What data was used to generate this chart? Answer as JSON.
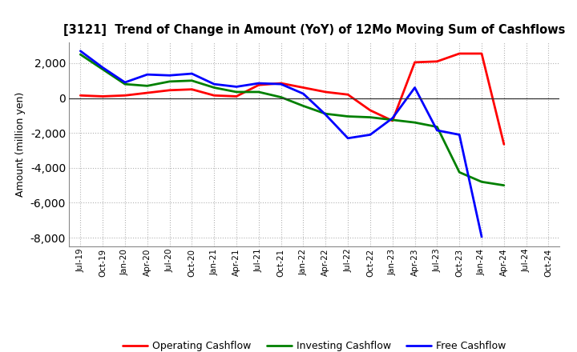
{
  "title": "[3121]  Trend of Change in Amount (YoY) of 12Mo Moving Sum of Cashflows",
  "ylabel": "Amount (million yen)",
  "ylim": [
    -8500,
    3200
  ],
  "yticks": [
    -8000,
    -6000,
    -4000,
    -2000,
    0,
    2000
  ],
  "background_color": "#ffffff",
  "grid_color": "#aaaaaa",
  "x_labels": [
    "Jul-19",
    "Oct-19",
    "Jan-20",
    "Apr-20",
    "Jul-20",
    "Oct-20",
    "Jan-21",
    "Apr-21",
    "Jul-21",
    "Oct-21",
    "Jan-22",
    "Apr-22",
    "Jul-22",
    "Oct-22",
    "Jan-23",
    "Apr-23",
    "Jul-23",
    "Oct-23",
    "Jan-24",
    "Apr-24",
    "Jul-24",
    "Oct-24"
  ],
  "operating": [
    150,
    100,
    150,
    300,
    450,
    500,
    150,
    100,
    750,
    850,
    600,
    350,
    200,
    -700,
    -1300,
    2050,
    2100,
    2550,
    2550,
    -2650,
    null,
    null
  ],
  "investing": [
    2500,
    1650,
    800,
    700,
    950,
    1000,
    600,
    350,
    350,
    50,
    -450,
    -900,
    -1050,
    -1100,
    -1250,
    -1400,
    -1650,
    -4250,
    -4800,
    -5000,
    null,
    null
  ],
  "free": [
    2700,
    1750,
    900,
    1350,
    1300,
    1400,
    800,
    650,
    850,
    800,
    250,
    -950,
    -2300,
    -2100,
    -1150,
    600,
    -1850,
    -2100,
    -7950,
    null,
    null,
    null
  ],
  "line_colors": {
    "operating": "#ff0000",
    "investing": "#008000",
    "free": "#0000ff"
  },
  "line_width": 2.0,
  "legend_labels": [
    "Operating Cashflow",
    "Investing Cashflow",
    "Free Cashflow"
  ]
}
